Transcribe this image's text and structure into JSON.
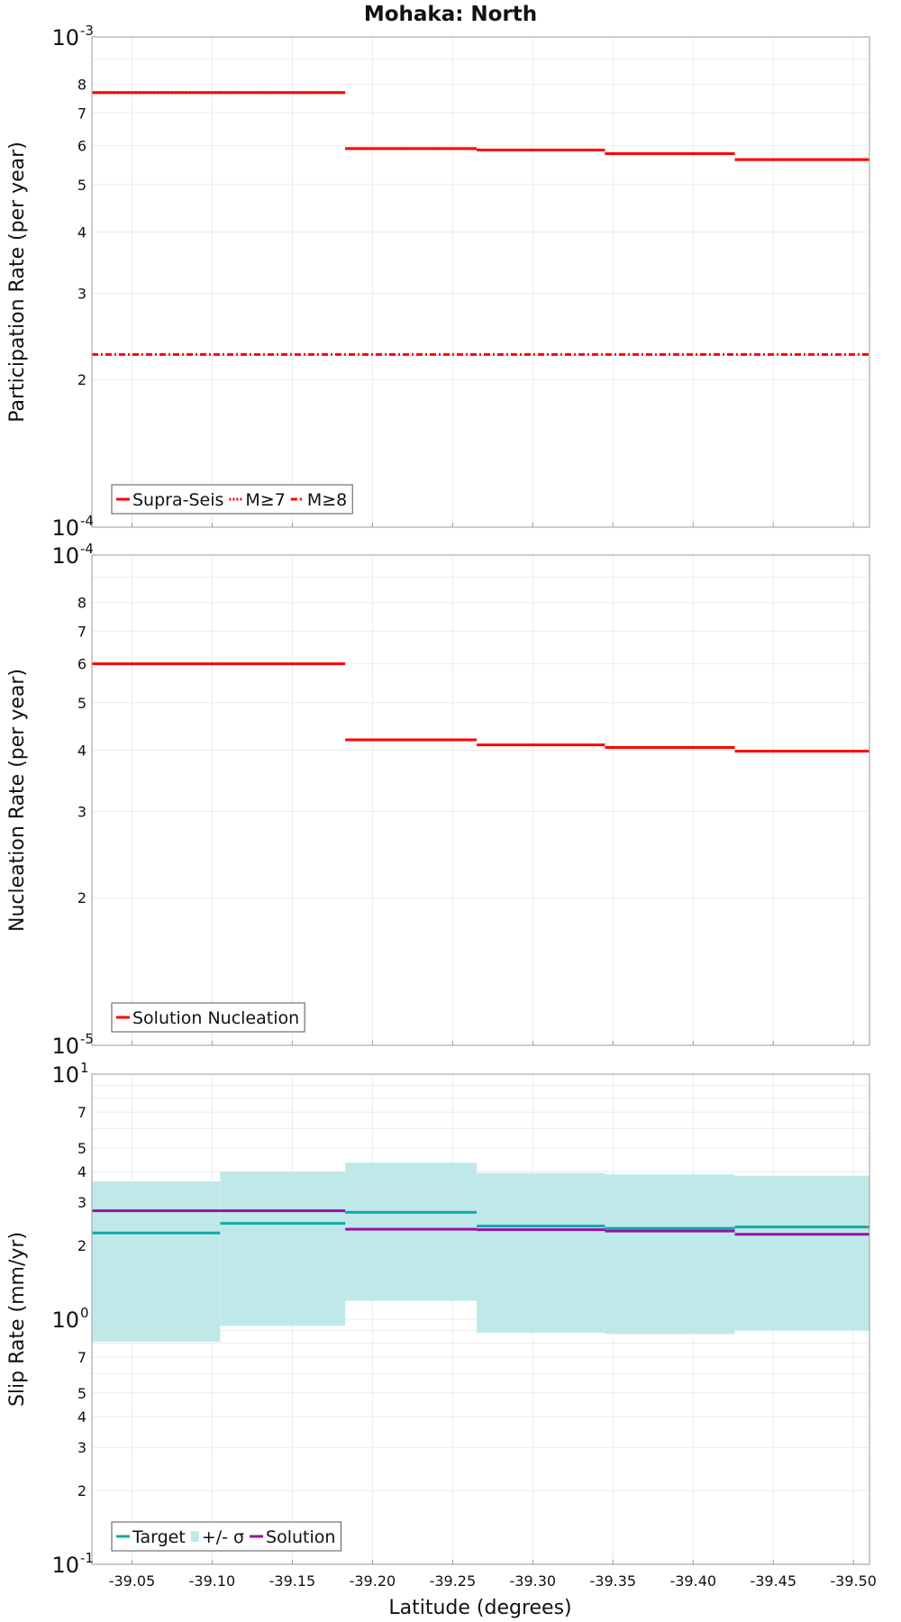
{
  "chart_data": [
    {
      "type": "line",
      "title": "Mohaka: North",
      "ylabel": "Participation Rate (per year)",
      "xlabel": "",
      "yscale": "log",
      "ylim": [
        0.0001,
        0.001
      ],
      "xlim": [
        -39.025,
        -39.51
      ],
      "decade_labels": [
        {
          "base": "10",
          "exp": "-4"
        },
        {
          "base": "10",
          "exp": "-3"
        }
      ],
      "ytick_labels": [
        "2",
        "3",
        "4",
        "5",
        "6",
        "7",
        "8"
      ],
      "legend_position": "bottom-left",
      "series": [
        {
          "name": "Supra-Seis",
          "color": "#ff0000",
          "style": "solid",
          "segments": [
            {
              "x0": -39.025,
              "x1": -39.105,
              "y": 0.00077
            },
            {
              "x0": -39.105,
              "x1": -39.183,
              "y": 0.00077
            },
            {
              "x0": -39.183,
              "x1": -39.265,
              "y": 0.000592
            },
            {
              "x0": -39.265,
              "x1": -39.345,
              "y": 0.000588
            },
            {
              "x0": -39.345,
              "x1": -39.426,
              "y": 0.000578
            },
            {
              "x0": -39.426,
              "x1": -39.51,
              "y": 0.000562
            }
          ]
        },
        {
          "name": "M≥7",
          "color": "#ff0000",
          "style": "dotted",
          "segments": [
            {
              "x0": -39.025,
              "x1": -39.105,
              "y": 0.00077
            },
            {
              "x0": -39.105,
              "x1": -39.183,
              "y": 0.00077
            },
            {
              "x0": -39.183,
              "x1": -39.265,
              "y": 0.000592
            },
            {
              "x0": -39.265,
              "x1": -39.345,
              "y": 0.000588
            },
            {
              "x0": -39.345,
              "x1": -39.426,
              "y": 0.000578
            },
            {
              "x0": -39.426,
              "x1": -39.51,
              "y": 0.000562
            }
          ]
        },
        {
          "name": "M≥8",
          "color": "#ff0000",
          "style": "dashdot",
          "segments": [
            {
              "x0": -39.025,
              "x1": -39.51,
              "y": 0.000225
            }
          ]
        }
      ]
    },
    {
      "type": "line",
      "title": "",
      "ylabel": "Nucleation Rate (per year)",
      "xlabel": "",
      "yscale": "log",
      "ylim": [
        1e-05,
        0.0001
      ],
      "xlim": [
        -39.025,
        -39.51
      ],
      "decade_labels": [
        {
          "base": "10",
          "exp": "-5"
        },
        {
          "base": "10",
          "exp": "-4"
        }
      ],
      "ytick_labels": [
        "2",
        "3",
        "4",
        "5",
        "6",
        "7",
        "8"
      ],
      "legend_position": "bottom-left",
      "series": [
        {
          "name": "Solution Nucleation",
          "color": "#ff0000",
          "style": "solid",
          "segments": [
            {
              "x0": -39.025,
              "x1": -39.105,
              "y": 6e-05
            },
            {
              "x0": -39.105,
              "x1": -39.183,
              "y": 6e-05
            },
            {
              "x0": -39.183,
              "x1": -39.265,
              "y": 4.2e-05
            },
            {
              "x0": -39.265,
              "x1": -39.345,
              "y": 4.1e-05
            },
            {
              "x0": -39.345,
              "x1": -39.426,
              "y": 4.05e-05
            },
            {
              "x0": -39.426,
              "x1": -39.51,
              "y": 3.98e-05
            }
          ]
        }
      ]
    },
    {
      "type": "area",
      "title": "",
      "ylabel": "Slip Rate (mm/yr)",
      "xlabel": "Latitude (degrees)",
      "yscale": "log",
      "ylim": [
        0.1,
        10
      ],
      "xlim": [
        -39.025,
        -39.51
      ],
      "decade_labels": [
        {
          "base": "10",
          "exp": "-1"
        },
        {
          "base": "10",
          "exp": "0"
        },
        {
          "base": "10",
          "exp": "1"
        }
      ],
      "ytick_labels_lower": [
        "2",
        "3",
        "4",
        "5",
        "7"
      ],
      "ytick_labels_upper": [
        "2",
        "3",
        "4",
        "5",
        "7"
      ],
      "xtick_labels": [
        "-39.05",
        "-39.10",
        "-39.15",
        "-39.20",
        "-39.25",
        "-39.30",
        "-39.35",
        "-39.40",
        "-39.45",
        "-39.50"
      ],
      "xtick_values": [
        -39.05,
        -39.1,
        -39.15,
        -39.2,
        -39.25,
        -39.3,
        -39.35,
        -39.4,
        -39.45,
        -39.5
      ],
      "legend_position": "bottom-left",
      "band": {
        "name": "+/- σ",
        "color": "#bfe9e9",
        "segments": [
          {
            "x0": -39.025,
            "x1": -39.105,
            "low": 0.81,
            "high": 3.65
          },
          {
            "x0": -39.105,
            "x1": -39.183,
            "low": 0.94,
            "high": 4.0
          },
          {
            "x0": -39.183,
            "x1": -39.265,
            "low": 1.19,
            "high": 4.35
          },
          {
            "x0": -39.265,
            "x1": -39.345,
            "low": 0.88,
            "high": 3.95
          },
          {
            "x0": -39.345,
            "x1": -39.426,
            "low": 0.87,
            "high": 3.9
          },
          {
            "x0": -39.426,
            "x1": -39.51,
            "low": 0.9,
            "high": 3.85
          }
        ]
      },
      "series": [
        {
          "name": "Target",
          "color": "#11aaaa",
          "style": "solid",
          "segments": [
            {
              "x0": -39.025,
              "x1": -39.105,
              "y": 2.25
            },
            {
              "x0": -39.105,
              "x1": -39.183,
              "y": 2.46
            },
            {
              "x0": -39.183,
              "x1": -39.265,
              "y": 2.73
            },
            {
              "x0": -39.265,
              "x1": -39.345,
              "y": 2.4
            },
            {
              "x0": -39.345,
              "x1": -39.426,
              "y": 2.35
            },
            {
              "x0": -39.426,
              "x1": -39.51,
              "y": 2.38
            }
          ]
        },
        {
          "name": "Solution",
          "color": "#9911aa",
          "style": "solid",
          "segments": [
            {
              "x0": -39.025,
              "x1": -39.105,
              "y": 2.77
            },
            {
              "x0": -39.105,
              "x1": -39.183,
              "y": 2.77
            },
            {
              "x0": -39.183,
              "x1": -39.265,
              "y": 2.33
            },
            {
              "x0": -39.265,
              "x1": -39.345,
              "y": 2.32
            },
            {
              "x0": -39.345,
              "x1": -39.426,
              "y": 2.29
            },
            {
              "x0": -39.426,
              "x1": -39.51,
              "y": 2.22
            }
          ]
        }
      ],
      "legend_order": [
        "Target",
        "+/- σ",
        "Solution"
      ]
    }
  ]
}
